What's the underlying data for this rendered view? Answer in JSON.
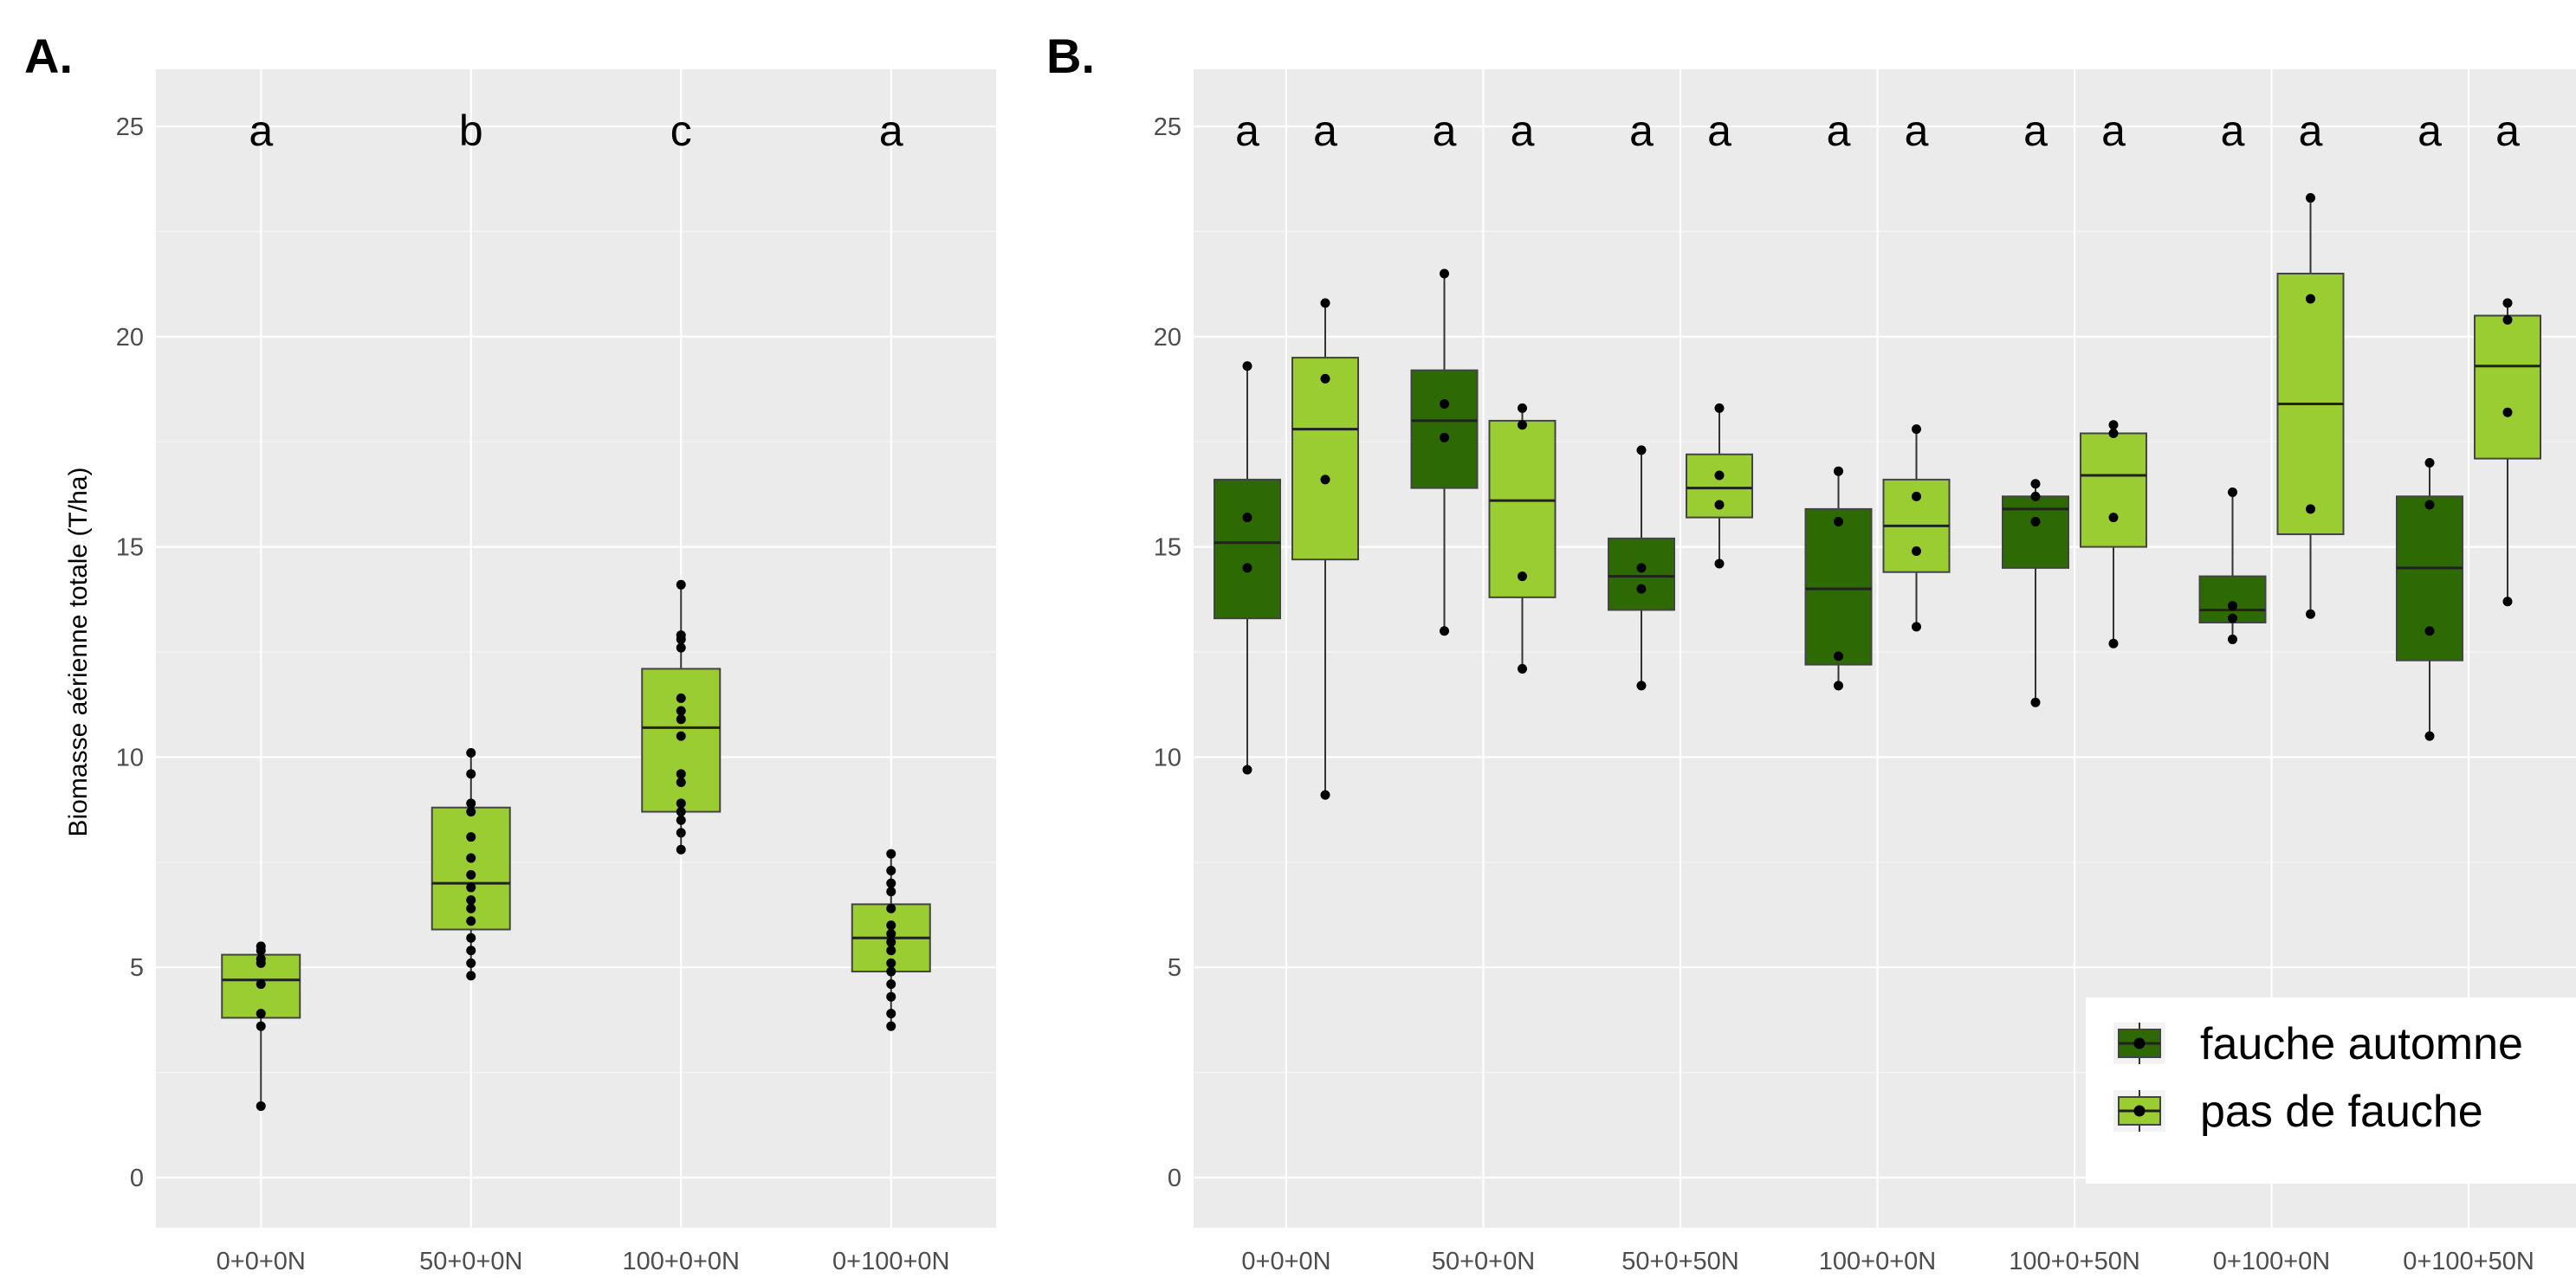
{
  "chart_data": [
    {
      "type": "box",
      "panel": "A.",
      "ylabel": "Biomasse aérienne totale (T/ha)",
      "ylim": [
        -1,
        26
      ],
      "yticks": [
        0,
        5,
        10,
        15,
        20,
        25
      ],
      "grid": true,
      "categories": [
        "0+0+0N",
        "50+0+0N",
        "100+0+0N",
        "0+100+0N"
      ],
      "significance": [
        "a",
        "b",
        "c",
        "a"
      ],
      "color": "#9acd32",
      "boxes": [
        {
          "min": 1.7,
          "q1": 3.8,
          "median": 4.7,
          "q3": 5.3,
          "max": 5.5,
          "points": [
            1.7,
            3.6,
            3.9,
            4.6,
            5.1,
            5.2,
            5.4,
            5.5
          ]
        },
        {
          "min": 4.8,
          "q1": 5.9,
          "median": 7.0,
          "q3": 8.8,
          "max": 10.1,
          "points": [
            4.8,
            5.1,
            5.4,
            5.7,
            6.1,
            6.4,
            6.6,
            6.9,
            7.2,
            7.6,
            8.1,
            8.7,
            8.9,
            9.6,
            10.1
          ]
        },
        {
          "min": 7.8,
          "q1": 8.7,
          "median": 10.7,
          "q3": 12.1,
          "max": 14.1,
          "points": [
            7.8,
            8.2,
            8.5,
            8.7,
            8.9,
            9.4,
            9.6,
            10.5,
            10.9,
            11.1,
            11.4,
            12.6,
            12.8,
            12.9,
            14.1
          ]
        },
        {
          "min": 3.6,
          "q1": 4.9,
          "median": 5.7,
          "q3": 6.5,
          "max": 7.7,
          "points": [
            3.6,
            3.9,
            4.3,
            4.6,
            4.9,
            5.1,
            5.4,
            5.6,
            5.8,
            6.0,
            6.4,
            6.8,
            7.0,
            7.3,
            7.7
          ]
        }
      ]
    },
    {
      "type": "box",
      "panel": "B.",
      "ylim": [
        -1,
        26
      ],
      "yticks": [
        0,
        5,
        10,
        15,
        20,
        25
      ],
      "grid": true,
      "categories": [
        "0+0+0N",
        "50+0+0N",
        "50+0+50N",
        "100+0+0N",
        "100+0+50N",
        "0+100+0N",
        "0+100+50N"
      ],
      "category_colors": [
        "#000000",
        "#000000",
        "#000000",
        "#000000",
        "#000000",
        "#ff0000",
        "#ff0000"
      ],
      "significance": [
        "a",
        "a",
        "a",
        "a",
        "a",
        "a",
        "a",
        "a",
        "a",
        "a",
        "a",
        "a",
        "a",
        "a"
      ],
      "legend": {
        "position": "bottom-right"
      },
      "series": [
        {
          "name": "fauche automne",
          "color": "#2d6a04",
          "boxes": [
            {
              "min": 9.7,
              "q1": 13.3,
              "median": 15.1,
              "q3": 16.6,
              "max": 19.3,
              "points": [
                9.7,
                14.5,
                15.7,
                19.3
              ]
            },
            {
              "min": 13.0,
              "q1": 16.4,
              "median": 18.0,
              "q3": 19.2,
              "max": 21.5,
              "points": [
                13.0,
                17.6,
                18.4,
                21.5
              ]
            },
            {
              "min": 11.7,
              "q1": 13.5,
              "median": 14.3,
              "q3": 15.2,
              "max": 17.3,
              "points": [
                11.7,
                14.0,
                14.5,
                17.3
              ]
            },
            {
              "min": 11.7,
              "q1": 12.2,
              "median": 14.0,
              "q3": 15.9,
              "max": 16.8,
              "points": [
                11.7,
                12.4,
                15.6,
                16.8
              ]
            },
            {
              "min": 11.3,
              "q1": 14.5,
              "median": 15.9,
              "q3": 16.2,
              "max": 16.5,
              "points": [
                11.3,
                15.6,
                16.2,
                16.5
              ]
            },
            {
              "min": 12.8,
              "q1": 13.2,
              "median": 13.5,
              "q3": 14.3,
              "max": 16.3,
              "points": [
                12.8,
                13.3,
                13.6,
                16.3
              ]
            },
            {
              "min": 10.5,
              "q1": 12.3,
              "median": 14.5,
              "q3": 16.2,
              "max": 17.0,
              "points": [
                10.5,
                13.0,
                16.0,
                17.0
              ]
            }
          ]
        },
        {
          "name": "pas de fauche",
          "color": "#9acd32",
          "boxes": [
            {
              "min": 9.1,
              "q1": 14.7,
              "median": 17.8,
              "q3": 19.5,
              "max": 20.8,
              "points": [
                9.1,
                16.6,
                19.0,
                20.8
              ]
            },
            {
              "min": 12.1,
              "q1": 13.8,
              "median": 16.1,
              "q3": 18.0,
              "max": 18.3,
              "points": [
                12.1,
                14.3,
                17.9,
                18.3
              ]
            },
            {
              "min": 14.6,
              "q1": 15.7,
              "median": 16.4,
              "q3": 17.2,
              "max": 18.3,
              "points": [
                14.6,
                16.0,
                16.7,
                18.3
              ]
            },
            {
              "min": 13.1,
              "q1": 14.4,
              "median": 15.5,
              "q3": 16.6,
              "max": 17.8,
              "points": [
                13.1,
                14.9,
                16.2,
                17.8
              ]
            },
            {
              "min": 12.7,
              "q1": 15.0,
              "median": 16.7,
              "q3": 17.7,
              "max": 17.9,
              "points": [
                12.7,
                15.7,
                17.7,
                17.9
              ]
            },
            {
              "min": 13.4,
              "q1": 15.3,
              "median": 18.4,
              "q3": 21.5,
              "max": 23.3,
              "points": [
                13.4,
                15.9,
                20.9,
                23.3
              ]
            },
            {
              "min": 13.7,
              "q1": 17.1,
              "median": 19.3,
              "q3": 20.5,
              "max": 20.8,
              "points": [
                13.7,
                18.2,
                20.4,
                20.8
              ]
            }
          ]
        }
      ]
    }
  ]
}
